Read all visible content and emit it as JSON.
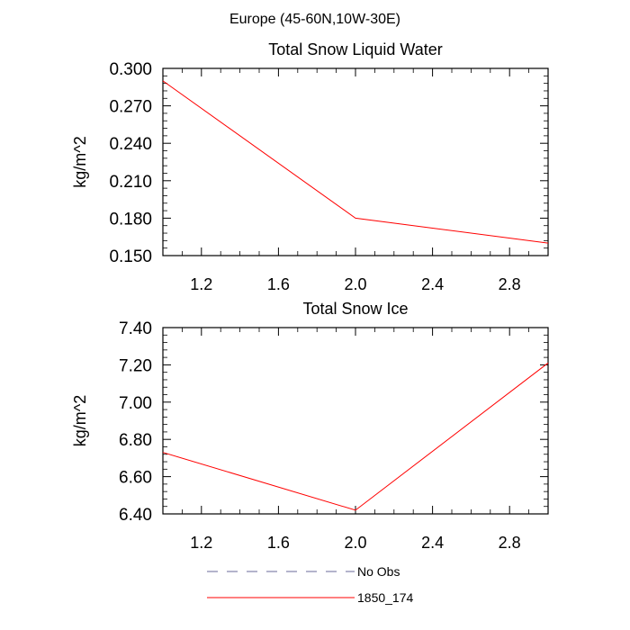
{
  "figure": {
    "suptitle": "Europe (45-60N,10W-30E)"
  },
  "chart_data": [
    {
      "type": "line",
      "title": "Total Snow Liquid Water",
      "xlabel": "",
      "ylabel": "kg/m^2",
      "xlim": [
        1.0,
        3.0
      ],
      "ylim": [
        0.15,
        0.3
      ],
      "xticks": [
        1.2,
        1.6,
        2.0,
        2.4,
        2.8
      ],
      "xtick_labels": [
        "1.2",
        "1.6",
        "2.0",
        "2.4",
        "2.8"
      ],
      "yticks": [
        0.15,
        0.18,
        0.21,
        0.24,
        0.27,
        0.3
      ],
      "ytick_labels": [
        "0.150",
        "0.180",
        "0.210",
        "0.240",
        "0.270",
        "0.300"
      ],
      "x": [
        1.0,
        2.0,
        3.0
      ],
      "series": [
        {
          "name": "1850_174",
          "color": "#ff0000",
          "values": [
            0.29,
            0.18,
            0.16
          ]
        }
      ]
    },
    {
      "type": "line",
      "title": "Total Snow Ice",
      "xlabel": "",
      "ylabel": "kg/m^2",
      "xlim": [
        1.0,
        3.0
      ],
      "ylim": [
        6.4,
        7.4
      ],
      "xticks": [
        1.2,
        1.6,
        2.0,
        2.4,
        2.8
      ],
      "xtick_labels": [
        "1.2",
        "1.6",
        "2.0",
        "2.4",
        "2.8"
      ],
      "yticks": [
        6.4,
        6.6,
        6.8,
        7.0,
        7.2,
        7.4
      ],
      "ytick_labels": [
        "6.40",
        "6.60",
        "6.80",
        "7.00",
        "7.20",
        "7.40"
      ],
      "x": [
        1.0,
        2.0,
        3.0
      ],
      "series": [
        {
          "name": "1850_174",
          "color": "#ff0000",
          "values": [
            6.73,
            6.42,
            7.21
          ]
        }
      ]
    }
  ],
  "legend": {
    "placement": "bottom",
    "items": [
      {
        "label": "No Obs",
        "color": "#6a6a9a",
        "style": "dashed"
      },
      {
        "label": "1850_174",
        "color": "#ff0000",
        "style": "solid"
      }
    ]
  }
}
